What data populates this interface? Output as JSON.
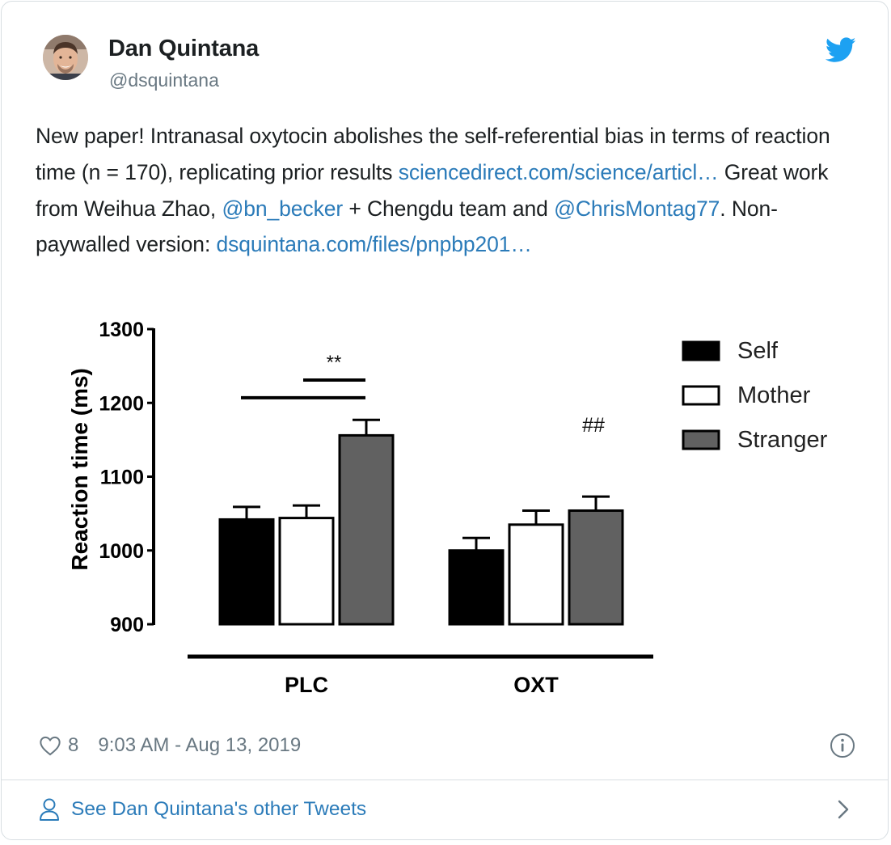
{
  "author": {
    "name": "Dan Quintana",
    "handle": "@dsquintana"
  },
  "icons": {
    "brand": "twitter-bird-icon",
    "like": "heart-icon",
    "info": "info-icon",
    "profile": "person-icon",
    "next": "chevron-right-icon"
  },
  "colors": {
    "link": "#2b7bb9",
    "brand_blue": "#1da1f2",
    "muted": "#697882"
  },
  "tweet": {
    "text_1": "New paper! Intranasal oxytocin abolishes the self-referential bias in terms of reaction time (n = 170), replicating prior results ",
    "link_1": "sciencedirect.com/science/articl…",
    "text_2": " Great work from Weihua Zhao, ",
    "mention_1": "@bn_becker",
    "text_3": " + Chengdu team and ",
    "mention_2": "@ChrisMontag77",
    "text_4": ". Non-paywalled version: ",
    "link_2": "dsquintana.com/files/pnpbp201…"
  },
  "chart_data": {
    "type": "bar",
    "ylabel": "Reaction time (ms)",
    "ylim": [
      900,
      1300
    ],
    "yticks": [
      900,
      1000,
      1100,
      1200,
      1300
    ],
    "categories": [
      "PLC",
      "OXT"
    ],
    "series": [
      {
        "name": "Self",
        "color": "#000000",
        "values": [
          1042,
          1000
        ],
        "errors": [
          17,
          17
        ]
      },
      {
        "name": "Mother",
        "color": "#ffffff",
        "values": [
          1044,
          1035
        ],
        "errors": [
          17,
          19
        ]
      },
      {
        "name": "Stranger",
        "color": "#616161",
        "values": [
          1156,
          1054
        ],
        "errors": [
          21,
          19
        ]
      }
    ],
    "annotations": {
      "plc_significance": "**",
      "oxt_significance": "##"
    },
    "legend_position": "top-right"
  },
  "footer": {
    "likes": "8",
    "timestamp": "9:03 AM - Aug 13, 2019",
    "other_tweets": "See Dan Quintana's other Tweets"
  }
}
